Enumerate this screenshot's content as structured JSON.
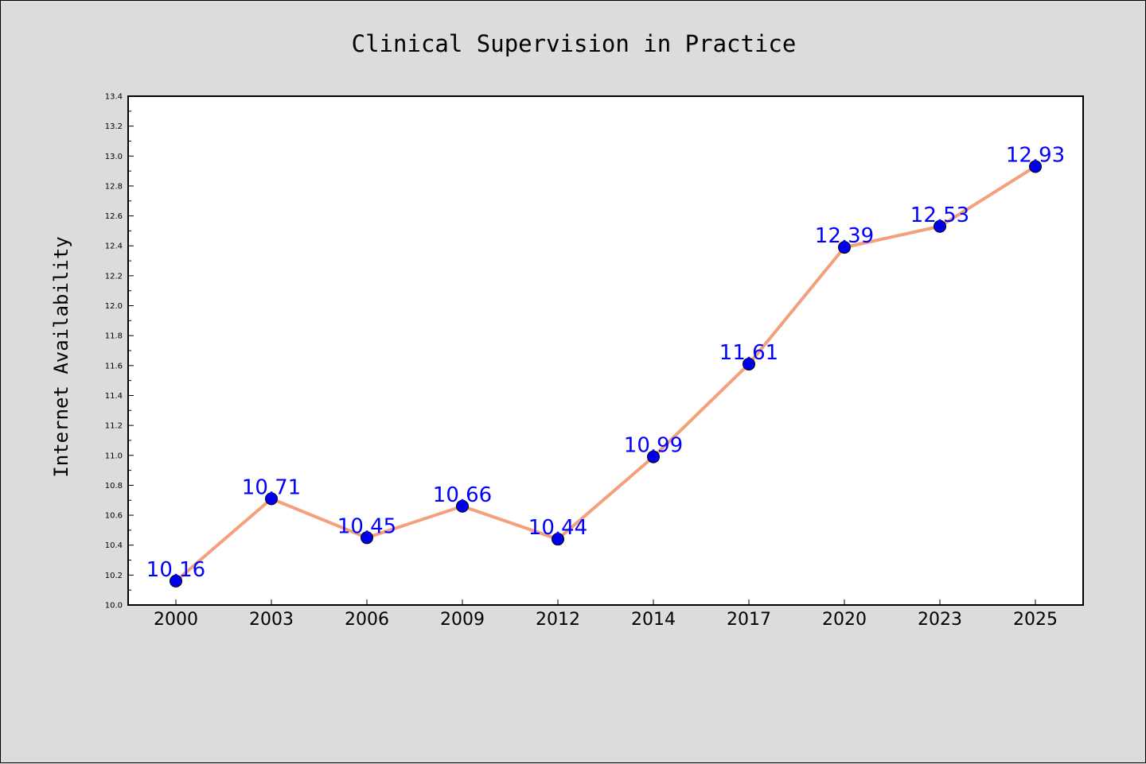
{
  "chart_data": {
    "type": "line",
    "title": "Clinical Supervision in Practice",
    "xlabel": "",
    "ylabel": "Internet Availability",
    "categories": [
      "2000",
      "2003",
      "2006",
      "2009",
      "2012",
      "2014",
      "2017",
      "2020",
      "2023",
      "2025"
    ],
    "values": [
      10.16,
      10.71,
      10.45,
      10.66,
      10.44,
      10.99,
      11.61,
      12.39,
      12.53,
      12.93
    ],
    "data_labels": [
      "10.16",
      "10.71",
      "10.45",
      "10.66",
      "10.44",
      "10.99",
      "11.61",
      "12.39",
      "12.53",
      "12.93"
    ],
    "ylim": [
      10.0,
      13.4
    ],
    "yticks": [
      10.0,
      10.2,
      10.4,
      10.6,
      10.8,
      11.0,
      11.2,
      11.4,
      11.6,
      11.8,
      12.0,
      12.2,
      12.4,
      12.6,
      12.8,
      13.0,
      13.2,
      13.4
    ],
    "ytick_labels": [
      "10.0",
      "10.2",
      "10.4",
      "10.6",
      "10.8",
      "11.0",
      "11.2",
      "11.4",
      "11.6",
      "11.8",
      "12.0",
      "12.2",
      "12.4",
      "12.6",
      "12.8",
      "13.0",
      "13.2",
      "13.4"
    ],
    "grid": false,
    "legend": "none",
    "colors": {
      "line": "#f4a07c",
      "marker": "#0000ee",
      "data_label": "#0000ff",
      "figure_background": "#dcdcdc",
      "plot_background": "#ffffff"
    }
  }
}
